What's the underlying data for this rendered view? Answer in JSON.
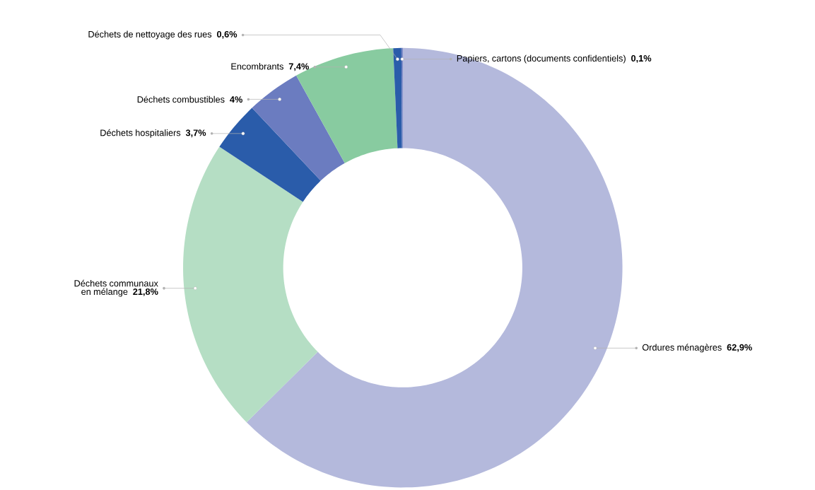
{
  "chart_data": {
    "type": "donut",
    "categories": [
      "Ordures ménagères",
      "Déchets communaux en mélange",
      "Déchets hospitaliers",
      "Déchets combustibles",
      "Encombrants",
      "Déchets de nettoyage des rues",
      "Papiers, cartons (documents confidentiels)"
    ],
    "values": [
      62.9,
      21.8,
      3.7,
      4,
      7.4,
      0.6,
      0.1
    ],
    "value_labels": [
      "62,9%",
      "21,8%",
      "3,7%",
      "4%",
      "7,4%",
      "0,6%",
      "0,1%"
    ],
    "colors": [
      "#b4b9dc",
      "#b5dec4",
      "#2a5caa",
      "#6b7cc0",
      "#88cba0",
      "#2a5caa",
      "#6b7cc0"
    ]
  }
}
